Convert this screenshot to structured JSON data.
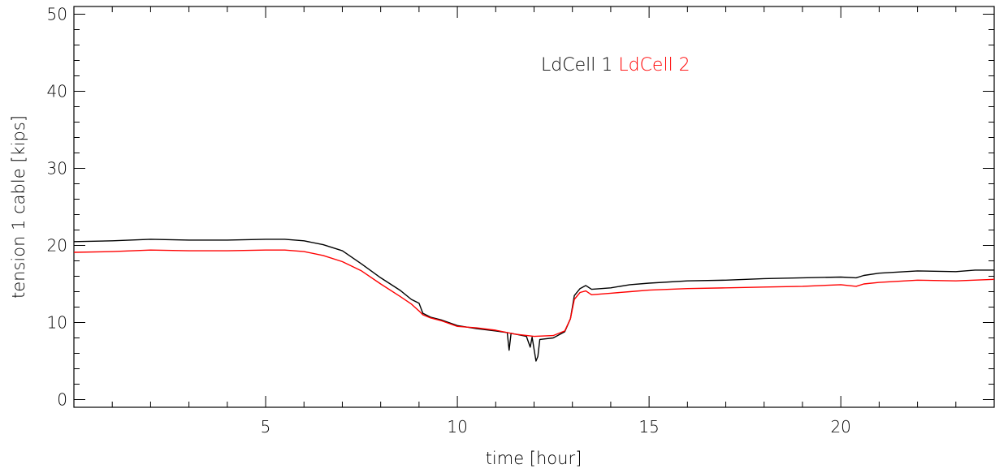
{
  "chart_data": {
    "type": "line",
    "title": "",
    "xlabel": "time [hour]",
    "ylabel": "tension 1 cable [kips]",
    "xlim": [
      0,
      24
    ],
    "ylim": [
      -1,
      51
    ],
    "xticks": [
      5,
      10,
      15,
      20
    ],
    "yticks": [
      0,
      10,
      20,
      30,
      40,
      50
    ],
    "grid": false,
    "legend_position": "top-center",
    "series": [
      {
        "name": "LdCell 1",
        "color": "#000000",
        "points": [
          [
            0,
            20.5
          ],
          [
            1,
            20.6
          ],
          [
            2,
            20.8
          ],
          [
            3,
            20.7
          ],
          [
            4,
            20.7
          ],
          [
            5,
            20.8
          ],
          [
            5.5,
            20.8
          ],
          [
            6,
            20.6
          ],
          [
            6.5,
            20.1
          ],
          [
            7,
            19.3
          ],
          [
            7.5,
            17.6
          ],
          [
            8,
            15.8
          ],
          [
            8.5,
            14.2
          ],
          [
            8.8,
            13.0
          ],
          [
            9.0,
            12.5
          ],
          [
            9.1,
            11.2
          ],
          [
            9.3,
            10.7
          ],
          [
            9.6,
            10.3
          ],
          [
            10,
            9.6
          ],
          [
            10.5,
            9.2
          ],
          [
            11,
            8.9
          ],
          [
            11.3,
            8.7
          ],
          [
            11.35,
            6.4
          ],
          [
            11.4,
            8.6
          ],
          [
            11.8,
            8.2
          ],
          [
            11.9,
            6.8
          ],
          [
            11.95,
            8.1
          ],
          [
            12.05,
            5.0
          ],
          [
            12.1,
            5.6
          ],
          [
            12.15,
            7.8
          ],
          [
            12.5,
            8.0
          ],
          [
            12.8,
            8.8
          ],
          [
            12.95,
            10.5
          ],
          [
            13.05,
            13.5
          ],
          [
            13.2,
            14.4
          ],
          [
            13.35,
            14.8
          ],
          [
            13.5,
            14.3
          ],
          [
            14,
            14.5
          ],
          [
            14.5,
            14.9
          ],
          [
            15,
            15.1
          ],
          [
            16,
            15.4
          ],
          [
            17,
            15.5
          ],
          [
            18,
            15.7
          ],
          [
            19,
            15.8
          ],
          [
            20,
            15.9
          ],
          [
            20.4,
            15.8
          ],
          [
            20.6,
            16.1
          ],
          [
            21,
            16.4
          ],
          [
            22,
            16.7
          ],
          [
            23,
            16.6
          ],
          [
            23.5,
            16.8
          ],
          [
            24,
            16.8
          ]
        ]
      },
      {
        "name": "LdCell 2",
        "color": "#ff0000",
        "points": [
          [
            0,
            19.1
          ],
          [
            1,
            19.2
          ],
          [
            2,
            19.4
          ],
          [
            3,
            19.3
          ],
          [
            4,
            19.3
          ],
          [
            5,
            19.4
          ],
          [
            5.5,
            19.4
          ],
          [
            6,
            19.2
          ],
          [
            6.5,
            18.7
          ],
          [
            7,
            17.9
          ],
          [
            7.5,
            16.7
          ],
          [
            8,
            15.0
          ],
          [
            8.5,
            13.4
          ],
          [
            8.8,
            12.4
          ],
          [
            9.0,
            11.5
          ],
          [
            9.1,
            11.0
          ],
          [
            9.3,
            10.6
          ],
          [
            9.6,
            10.2
          ],
          [
            10,
            9.5
          ],
          [
            10.5,
            9.3
          ],
          [
            11,
            9.0
          ],
          [
            11.5,
            8.5
          ],
          [
            12,
            8.2
          ],
          [
            12.5,
            8.3
          ],
          [
            12.8,
            8.9
          ],
          [
            12.95,
            10.5
          ],
          [
            13.05,
            13.0
          ],
          [
            13.2,
            13.9
          ],
          [
            13.35,
            14.1
          ],
          [
            13.5,
            13.6
          ],
          [
            14,
            13.8
          ],
          [
            14.5,
            14.0
          ],
          [
            15,
            14.2
          ],
          [
            16,
            14.4
          ],
          [
            17,
            14.5
          ],
          [
            18,
            14.6
          ],
          [
            19,
            14.7
          ],
          [
            20,
            14.9
          ],
          [
            20.4,
            14.7
          ],
          [
            20.6,
            15.0
          ],
          [
            21,
            15.2
          ],
          [
            22,
            15.5
          ],
          [
            23,
            15.4
          ],
          [
            24,
            15.6
          ]
        ]
      }
    ]
  }
}
